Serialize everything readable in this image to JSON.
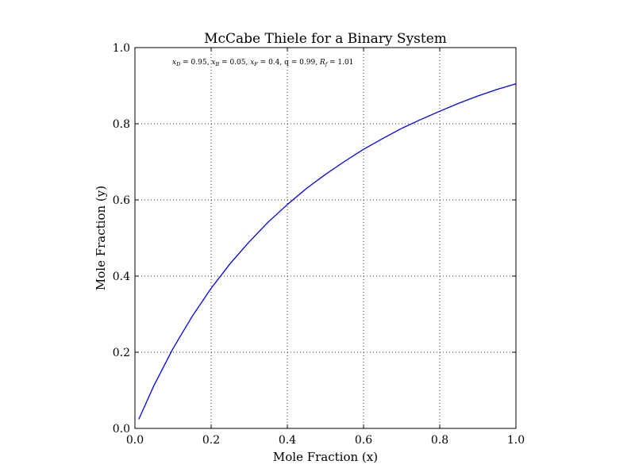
{
  "chart_data": {
    "type": "line",
    "title": "McCabe Thiele for a Binary System",
    "xlabel": "Mole Fraction (x)",
    "ylabel": "Mole Fraction (y)",
    "xlim": [
      0.0,
      1.0
    ],
    "ylim": [
      0.0,
      1.0
    ],
    "x_ticks": [
      "0.0",
      "0.2",
      "0.4",
      "0.6",
      "0.8",
      "1.0"
    ],
    "y_ticks": [
      "0.0",
      "0.2",
      "0.4",
      "0.6",
      "0.8",
      "1.0"
    ],
    "grid": true,
    "grid_style": "dotted",
    "annotation": {
      "text": "xD = 0.95, xB = 0.05, xF = 0.4, q = 0.99, Rf = 1.01",
      "parts": [
        {
          "var": "x",
          "sub": "D",
          "value": " = 0.95, "
        },
        {
          "var": "x",
          "sub": "B",
          "value": " = 0.05, "
        },
        {
          "var": "x",
          "sub": "F",
          "value": " = 0.4, "
        },
        {
          "var": "",
          "sub": "",
          "value": "q = 0.99, "
        },
        {
          "var": "R",
          "sub": "f",
          "value": " = 1.01"
        }
      ]
    },
    "series": [
      {
        "color": "#0000ff",
        "x": [
          0.01,
          0.05,
          0.1,
          0.15,
          0.2,
          0.25,
          0.3,
          0.35,
          0.4,
          0.45,
          0.5,
          0.55,
          0.6,
          0.65,
          0.7,
          0.75,
          0.8,
          0.85,
          0.9,
          0.95,
          1.0
        ],
        "y": [
          0.024,
          0.113,
          0.21,
          0.294,
          0.368,
          0.433,
          0.49,
          0.542,
          0.588,
          0.63,
          0.667,
          0.701,
          0.733,
          0.761,
          0.788,
          0.811,
          0.833,
          0.854,
          0.873,
          0.89,
          0.905
        ]
      }
    ],
    "colors": {
      "curve": "#0000ff",
      "axes": "#000000",
      "grid": "#000000",
      "background": "#ffffff"
    }
  }
}
